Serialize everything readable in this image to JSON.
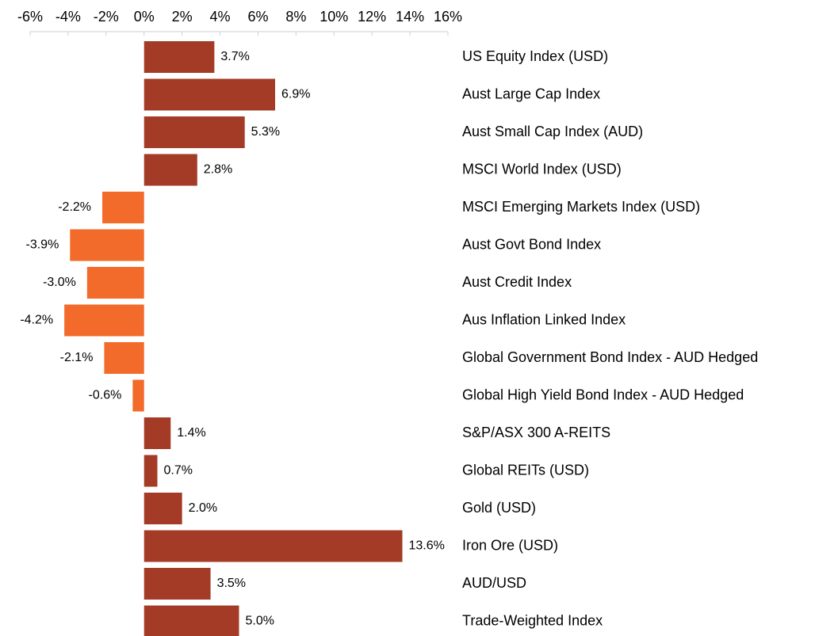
{
  "chart_data": {
    "type": "barh",
    "categories": [
      "US Equity Index (USD)",
      "Aust Large Cap Index",
      "Aust Small Cap Index (AUD)",
      "MSCI World Index (USD)",
      "MSCI Emerging Markets Index (USD)",
      "Aust Govt Bond Index",
      "Aust Credit Index",
      "Aus Inflation Linked Index",
      "Global Government Bond Index - AUD Hedged",
      "Global High Yield Bond Index - AUD Hedged",
      "S&P/ASX 300 A-REITS",
      "Global REITs (USD)",
      "Gold (USD)",
      "Iron Ore (USD)",
      "AUD/USD",
      "Trade-Weighted Index"
    ],
    "values": [
      3.7,
      6.9,
      5.3,
      2.8,
      -2.2,
      -3.9,
      -3.0,
      -4.2,
      -2.1,
      -0.6,
      1.4,
      0.7,
      2.0,
      13.6,
      3.5,
      5.0
    ],
    "value_labels": [
      "3.7%",
      "6.9%",
      "5.3%",
      "2.8%",
      "-2.2%",
      "-3.9%",
      "-3.0%",
      "-4.2%",
      "-2.1%",
      "-0.6%",
      "1.4%",
      "0.7%",
      "2.0%",
      "13.6%",
      "3.5%",
      "5.0%"
    ],
    "positive_color": "#a33b26",
    "negative_color": "#f26b2a",
    "xlim": [
      -6,
      16
    ],
    "xticks": [
      {
        "value": -6,
        "label": "-6%"
      },
      {
        "value": -4,
        "label": "-4%"
      },
      {
        "value": -2,
        "label": "-2%"
      },
      {
        "value": 0,
        "label": "0%"
      },
      {
        "value": 2,
        "label": "2%"
      },
      {
        "value": 4,
        "label": "4%"
      },
      {
        "value": 6,
        "label": "6%"
      },
      {
        "value": 8,
        "label": "8%"
      },
      {
        "value": 10,
        "label": "10%"
      },
      {
        "value": 12,
        "label": "12%"
      },
      {
        "value": 14,
        "label": "14%"
      },
      {
        "value": 16,
        "label": "16%"
      }
    ],
    "xaxis_position": "top",
    "grid": false
  }
}
